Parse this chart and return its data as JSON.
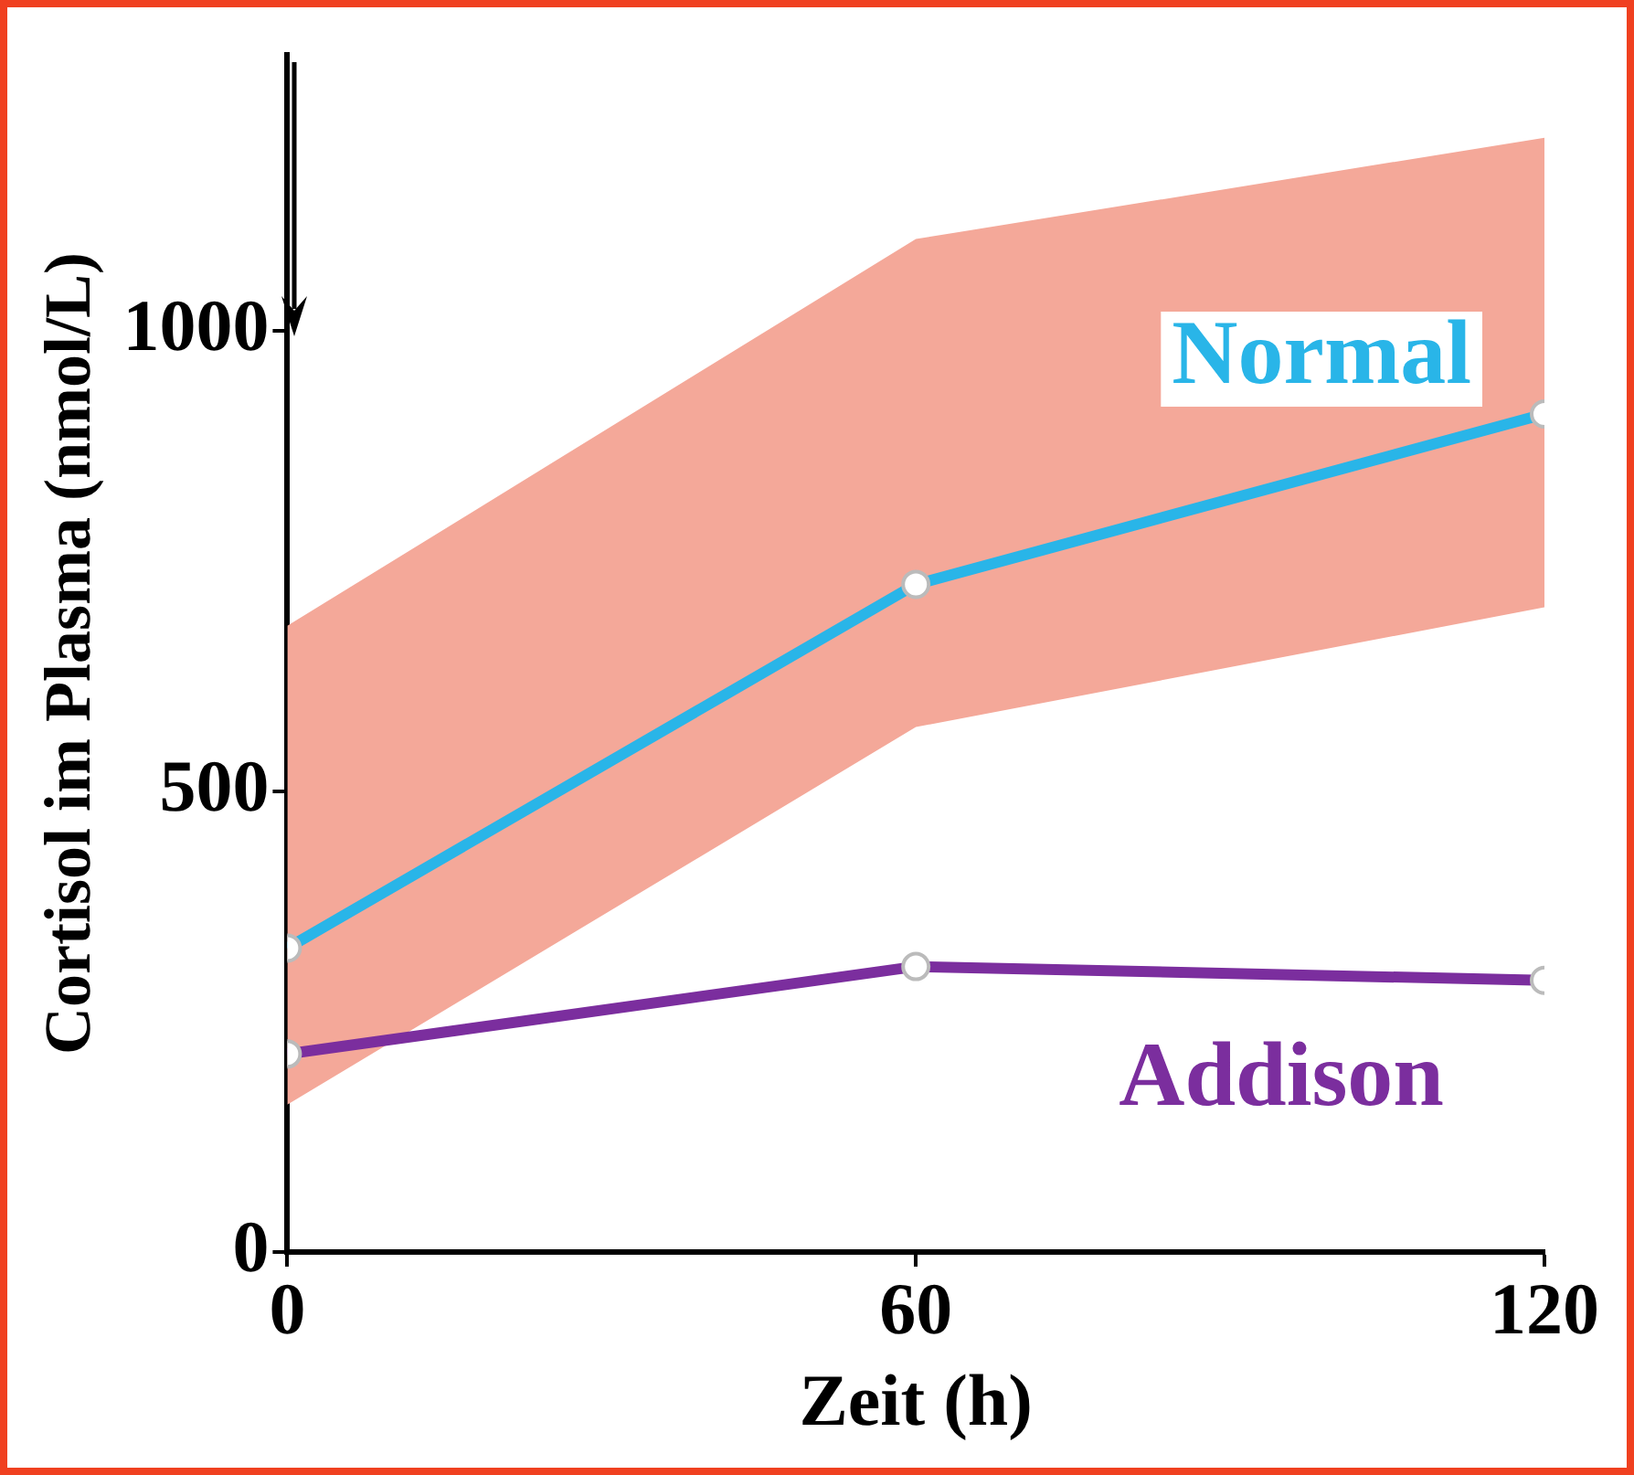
{
  "chart_data": {
    "type": "line",
    "xlabel": "Zeit (h)",
    "ylabel": "Cortisol im Plasma (nmol/L)",
    "x": [
      0,
      60,
      120
    ],
    "series": [
      {
        "name": "Normal",
        "color": "#29b5e8",
        "values": [
          330,
          725,
          910
        ],
        "lower": [
          160,
          570,
          700
        ],
        "upper": [
          680,
          1100,
          1210
        ]
      },
      {
        "name": "Addison",
        "color": "#7b2e9e",
        "values": [
          215,
          310,
          295
        ]
      }
    ],
    "xlim": [
      0,
      120
    ],
    "xticks": [
      0,
      60,
      120
    ],
    "ylim": [
      0,
      1300
    ],
    "yticks": [
      0,
      500,
      1000
    ],
    "grid": false,
    "legend": false,
    "marker": "circle",
    "line_style": "solid"
  }
}
